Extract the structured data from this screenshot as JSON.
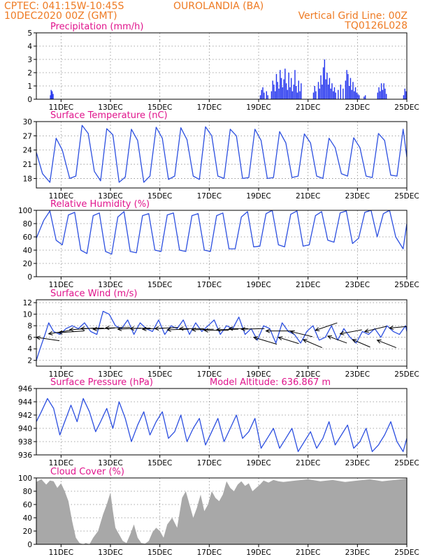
{
  "header": {
    "line1_left": "CPTEC:  041:15W-10:45S",
    "line1_right": "OUROLANDIA (BA)",
    "line2_left": "10DEC2020 00Z (GMT)",
    "line2_right": "Vertical Grid Line: 00Z",
    "line3_right": "TQ0126L028"
  },
  "colors": {
    "line": "#2c4fe0",
    "bar": "#2233ee",
    "cloud": "#a8a8a8",
    "arrow": "#000000"
  },
  "x_axis": {
    "start": 0,
    "end": 15,
    "tick_labels": [
      "11DEC",
      "13DEC",
      "15DEC",
      "17DEC",
      "19DEC",
      "21DEC",
      "23DEC",
      "25DEC"
    ],
    "tick_days": [
      1,
      3,
      5,
      7,
      9,
      11,
      13,
      15
    ]
  },
  "chart_data": [
    {
      "id": "precip",
      "type": "bar",
      "title": "Precipitation (mm/h)",
      "ylim": [
        0,
        5
      ],
      "yticks": [
        0,
        1,
        2,
        3,
        4,
        5
      ],
      "grid": true,
      "bars": [
        [
          0.55,
          0.3
        ],
        [
          0.58,
          0.7
        ],
        [
          0.62,
          0.6
        ],
        [
          0.66,
          0.4
        ],
        [
          9.05,
          0.3
        ],
        [
          9.1,
          0.7
        ],
        [
          9.15,
          0.9
        ],
        [
          9.2,
          0.5
        ],
        [
          9.3,
          0.6
        ],
        [
          9.35,
          0.3
        ],
        [
          9.5,
          0.6
        ],
        [
          9.55,
          1.4
        ],
        [
          9.6,
          1.1
        ],
        [
          9.65,
          0.6
        ],
        [
          9.7,
          1.9
        ],
        [
          9.75,
          1.3
        ],
        [
          9.8,
          0.8
        ],
        [
          9.85,
          2.2
        ],
        [
          9.9,
          1.6
        ],
        [
          9.95,
          0.9
        ],
        [
          10.0,
          1.5
        ],
        [
          10.05,
          2.3
        ],
        [
          10.1,
          1.2
        ],
        [
          10.15,
          0.7
        ],
        [
          10.2,
          2.0
        ],
        [
          10.25,
          0.9
        ],
        [
          10.3,
          1.6
        ],
        [
          10.35,
          0.6
        ],
        [
          10.4,
          1.1
        ],
        [
          10.45,
          2.2
        ],
        [
          10.5,
          1.0
        ],
        [
          10.55,
          0.5
        ],
        [
          10.6,
          1.4
        ],
        [
          10.65,
          0.6
        ],
        [
          10.7,
          1.2
        ],
        [
          11.2,
          0.5
        ],
        [
          11.25,
          1.0
        ],
        [
          11.3,
          0.6
        ],
        [
          11.4,
          1.3
        ],
        [
          11.45,
          0.8
        ],
        [
          11.5,
          1.8
        ],
        [
          11.55,
          1.1
        ],
        [
          11.6,
          2.4
        ],
        [
          11.65,
          3.0
        ],
        [
          11.7,
          1.5
        ],
        [
          11.75,
          2.0
        ],
        [
          11.8,
          1.1
        ],
        [
          11.85,
          1.6
        ],
        [
          11.9,
          0.8
        ],
        [
          11.95,
          1.2
        ],
        [
          12.0,
          0.6
        ],
        [
          12.05,
          0.9
        ],
        [
          12.1,
          0.5
        ],
        [
          12.2,
          0.7
        ],
        [
          12.3,
          1.1
        ],
        [
          12.4,
          0.8
        ],
        [
          12.5,
          1.4
        ],
        [
          12.55,
          2.2
        ],
        [
          12.6,
          1.9
        ],
        [
          12.65,
          1.0
        ],
        [
          12.7,
          1.6
        ],
        [
          12.75,
          0.7
        ],
        [
          12.8,
          1.3
        ],
        [
          12.85,
          0.6
        ],
        [
          12.9,
          0.9
        ],
        [
          12.95,
          0.5
        ],
        [
          13.0,
          0.4
        ],
        [
          13.05,
          0.3
        ],
        [
          13.25,
          0.2
        ],
        [
          13.3,
          0.3
        ],
        [
          13.8,
          0.5
        ],
        [
          13.85,
          0.9
        ],
        [
          13.9,
          0.6
        ],
        [
          13.95,
          1.2
        ],
        [
          14.0,
          0.7
        ],
        [
          14.05,
          1.2
        ],
        [
          14.1,
          0.8
        ],
        [
          14.15,
          0.4
        ],
        [
          14.85,
          0.3
        ],
        [
          14.9,
          0.8
        ],
        [
          14.95,
          0.6
        ],
        [
          15.0,
          1.0
        ]
      ]
    },
    {
      "id": "temp",
      "type": "line",
      "title": "Surface Temperature (nC)",
      "ylim": [
        16,
        30
      ],
      "yticks": [
        18,
        21,
        24,
        27,
        30
      ],
      "grid": true,
      "x": [
        0,
        0.25,
        0.55,
        0.8,
        1.05,
        1.35,
        1.6,
        1.85,
        2.1,
        2.35,
        2.6,
        2.85,
        3.1,
        3.35,
        3.6,
        3.85,
        4.1,
        4.35,
        4.6,
        4.85,
        5.1,
        5.35,
        5.6,
        5.85,
        6.1,
        6.35,
        6.6,
        6.85,
        7.1,
        7.35,
        7.6,
        7.85,
        8.1,
        8.35,
        8.6,
        8.85,
        9.1,
        9.35,
        9.6,
        9.85,
        10.1,
        10.35,
        10.6,
        10.85,
        11.1,
        11.35,
        11.6,
        11.85,
        12.1,
        12.35,
        12.6,
        12.85,
        13.1,
        13.35,
        13.6,
        13.85,
        14.1,
        14.35,
        14.6,
        14.85,
        15.0
      ],
      "y": [
        23.5,
        19,
        17.2,
        26.5,
        24,
        18,
        18.5,
        29.2,
        27.5,
        19.5,
        17.5,
        28.5,
        27.2,
        17.2,
        18.3,
        28.4,
        26,
        17.2,
        18.5,
        28.8,
        26.5,
        17.8,
        18.5,
        28.7,
        26.2,
        18.5,
        17.8,
        28.9,
        27,
        18.5,
        18,
        28.4,
        27,
        18,
        18.2,
        28.4,
        26,
        18,
        18.2,
        27.9,
        25.5,
        18.2,
        18.5,
        27.4,
        25.5,
        18.5,
        18,
        26.5,
        24.5,
        19,
        18.5,
        26.6,
        24.5,
        18.5,
        18.2,
        27.5,
        26,
        18.7,
        18.5,
        28.4,
        22.5
      ]
    },
    {
      "id": "rh",
      "type": "line",
      "title": "Relative Humidity (%)",
      "ylim": [
        0,
        100
      ],
      "yticks": [
        0,
        20,
        40,
        60,
        80,
        100
      ],
      "grid": true,
      "x": [
        0,
        0.3,
        0.55,
        0.8,
        1.05,
        1.3,
        1.55,
        1.8,
        2.05,
        2.3,
        2.55,
        2.8,
        3.05,
        3.3,
        3.55,
        3.8,
        4.05,
        4.3,
        4.55,
        4.8,
        5.05,
        5.3,
        5.55,
        5.8,
        6.05,
        6.3,
        6.55,
        6.8,
        7.05,
        7.3,
        7.55,
        7.8,
        8.05,
        8.3,
        8.55,
        8.8,
        9.05,
        9.3,
        9.55,
        9.8,
        10.05,
        10.3,
        10.55,
        10.8,
        11.05,
        11.3,
        11.55,
        11.8,
        12.05,
        12.3,
        12.55,
        12.8,
        13.05,
        13.3,
        13.55,
        13.8,
        14.05,
        14.3,
        14.55,
        14.85,
        15.0
      ],
      "y": [
        58,
        85,
        99,
        55,
        48,
        93,
        97,
        40,
        35,
        92,
        96,
        38,
        34,
        90,
        98,
        38,
        36,
        92,
        95,
        40,
        38,
        93,
        96,
        40,
        38,
        92,
        95,
        40,
        38,
        92,
        96,
        42,
        42,
        90,
        98,
        45,
        46,
        95,
        100,
        48,
        45,
        94,
        99,
        46,
        48,
        92,
        98,
        55,
        52,
        96,
        99,
        50,
        58,
        97,
        100,
        60,
        95,
        100,
        60,
        42,
        80
      ]
    },
    {
      "id": "wind",
      "type": "line",
      "title": "Surface Wind (m/s)",
      "ylim": [
        1,
        12.5
      ],
      "yticks": [
        2,
        4,
        6,
        8,
        10,
        12
      ],
      "grid": true,
      "x": [
        0,
        0.15,
        0.35,
        0.5,
        0.7,
        0.95,
        1.2,
        1.45,
        1.7,
        1.95,
        2.2,
        2.45,
        2.7,
        2.95,
        3.2,
        3.45,
        3.7,
        3.95,
        4.2,
        4.45,
        4.7,
        4.95,
        5.2,
        5.45,
        5.7,
        5.95,
        6.2,
        6.45,
        6.7,
        6.95,
        7.2,
        7.45,
        7.7,
        7.95,
        8.2,
        8.45,
        8.7,
        8.95,
        9.2,
        9.45,
        9.7,
        9.95,
        10.2,
        10.45,
        10.7,
        10.95,
        11.2,
        11.45,
        11.7,
        11.95,
        12.2,
        12.45,
        12.7,
        12.95,
        13.2,
        13.45,
        13.7,
        13.95,
        14.2,
        14.45,
        14.7,
        14.95,
        15.0
      ],
      "y": [
        2,
        4,
        6.5,
        8.5,
        7,
        6.5,
        7.5,
        8,
        7.5,
        8.5,
        7,
        6.5,
        10.5,
        10,
        8,
        7.5,
        9,
        6.5,
        8.5,
        7.5,
        7,
        9,
        6.5,
        8,
        7.5,
        9,
        6.5,
        8.5,
        7,
        8,
        9,
        6.5,
        8,
        7.5,
        9.5,
        6.5,
        7.5,
        5.5,
        8,
        7.5,
        5,
        8.5,
        7,
        6.5,
        5,
        7,
        8,
        5.5,
        6,
        8,
        5.5,
        7.5,
        6,
        5,
        7,
        6.5,
        7.5,
        6,
        8,
        7,
        6.5,
        8,
        7
      ]
    },
    {
      "id": "pressure",
      "type": "line",
      "title": "Surface Pressure (hPa)",
      "annotation": "Model Altitude: 636.867 m",
      "ylim": [
        936,
        946
      ],
      "yticks": [
        936,
        938,
        940,
        942,
        944,
        946
      ],
      "grid": true,
      "x": [
        0,
        0.2,
        0.45,
        0.7,
        0.95,
        1.15,
        1.4,
        1.65,
        1.9,
        2.15,
        2.4,
        2.6,
        2.85,
        3.1,
        3.35,
        3.6,
        3.85,
        4.1,
        4.35,
        4.6,
        4.85,
        5.1,
        5.35,
        5.6,
        5.85,
        6.1,
        6.35,
        6.6,
        6.85,
        7.1,
        7.35,
        7.6,
        7.85,
        8.1,
        8.35,
        8.6,
        8.85,
        9.1,
        9.35,
        9.6,
        9.85,
        10.1,
        10.35,
        10.6,
        10.85,
        11.1,
        11.35,
        11.6,
        11.85,
        12.1,
        12.35,
        12.6,
        12.85,
        13.1,
        13.35,
        13.6,
        13.85,
        14.1,
        14.35,
        14.6,
        14.85,
        15.0
      ],
      "y": [
        941,
        942.5,
        944.5,
        943,
        939,
        941,
        943.5,
        941,
        944.5,
        942.5,
        939.5,
        941,
        943,
        940,
        944,
        941.5,
        938,
        940.5,
        942.5,
        939,
        941,
        942.5,
        938.5,
        939.5,
        942,
        938,
        940,
        941.5,
        937.5,
        939.5,
        941.5,
        938,
        940,
        942,
        938.5,
        939.5,
        941.5,
        937,
        938.5,
        940,
        937,
        938.5,
        940,
        936.5,
        938,
        939.5,
        937,
        938.5,
        941,
        937.5,
        939,
        940.5,
        937,
        938,
        940,
        936.5,
        937.5,
        939,
        941,
        938,
        936.5,
        938.5
      ]
    },
    {
      "id": "cloud",
      "type": "area",
      "title": "Cloud Cover (%)",
      "ylim": [
        0,
        100
      ],
      "yticks": [
        0,
        20,
        40,
        60,
        80,
        100
      ],
      "grid": true,
      "x": [
        0,
        0.2,
        0.4,
        0.55,
        0.7,
        0.85,
        1.0,
        1.15,
        1.3,
        1.45,
        1.6,
        1.75,
        1.9,
        2.0,
        2.15,
        2.3,
        2.5,
        2.7,
        2.85,
        3.0,
        3.1,
        3.2,
        3.35,
        3.5,
        3.65,
        3.8,
        3.95,
        4.1,
        4.25,
        4.4,
        4.55,
        4.7,
        4.85,
        5.0,
        5.15,
        5.3,
        5.5,
        5.7,
        5.9,
        6.05,
        6.2,
        6.35,
        6.5,
        6.65,
        6.8,
        6.95,
        7.1,
        7.25,
        7.4,
        7.55,
        7.7,
        7.85,
        8.0,
        8.15,
        8.3,
        8.45,
        8.6,
        8.75,
        8.9,
        9.05,
        9.2,
        9.4,
        9.6,
        9.8,
        10.0,
        10.5,
        11.0,
        11.5,
        12.0,
        12.5,
        13.0,
        13.5,
        14.0,
        14.5,
        15.0
      ],
      "y": [
        94,
        98,
        90,
        96,
        95,
        85,
        92,
        80,
        65,
        35,
        10,
        2,
        0,
        2,
        0,
        10,
        20,
        45,
        60,
        78,
        50,
        25,
        15,
        5,
        2,
        15,
        30,
        10,
        2,
        1,
        5,
        18,
        25,
        20,
        10,
        30,
        40,
        25,
        70,
        80,
        60,
        40,
        55,
        75,
        50,
        60,
        80,
        70,
        65,
        75,
        95,
        85,
        80,
        90,
        95,
        88,
        92,
        80,
        85,
        90,
        96,
        93,
        97,
        95,
        94,
        96,
        98,
        95,
        97,
        94,
        96,
        98,
        95,
        97,
        99
      ]
    },
    {
      "id": "wind_vectors",
      "type": "vector",
      "dx_scale": 0.25,
      "dy_scale": 0.5,
      "vectors": [
        [
          0,
          6,
          1.7,
          -0.6
        ],
        [
          0.5,
          6.6,
          1.6,
          0.6
        ],
        [
          0.9,
          6.8,
          1.9,
          0.3
        ],
        [
          1.35,
          7.3,
          1.8,
          0.3
        ],
        [
          1.8,
          7.5,
          1.7,
          0.1
        ],
        [
          2.3,
          7.4,
          1.6,
          0.2
        ],
        [
          2.8,
          7.6,
          1.8,
          0.1
        ],
        [
          3.3,
          7.4,
          1.7,
          0.2
        ],
        [
          3.8,
          7.5,
          1.5,
          0.1
        ],
        [
          4.3,
          7.4,
          1.6,
          0.2
        ],
        [
          4.8,
          7.5,
          1.7,
          0.2
        ],
        [
          5.3,
          7.3,
          1.6,
          0.1
        ],
        [
          5.8,
          7.5,
          1.8,
          0.0
        ],
        [
          6.3,
          7.3,
          1.6,
          0.1
        ],
        [
          6.8,
          7.2,
          1.8,
          0.0
        ],
        [
          7.3,
          7.3,
          1.6,
          0.1
        ],
        [
          7.8,
          7.5,
          1.4,
          0.0
        ],
        [
          8.3,
          7.4,
          1.7,
          0.1
        ],
        [
          8.8,
          6,
          1.7,
          -1.2
        ],
        [
          9.3,
          7.1,
          2.0,
          0.0
        ],
        [
          9.8,
          6.0,
          1.5,
          -1.1
        ],
        [
          10.3,
          7.0,
          1.6,
          -0.9
        ],
        [
          10.8,
          5.6,
          1.4,
          -1.4
        ],
        [
          11.3,
          7.2,
          1.6,
          1.3
        ],
        [
          11.8,
          6.2,
          1.4,
          -1.2
        ],
        [
          12.3,
          6.6,
          1.6,
          0.7
        ],
        [
          12.8,
          5.6,
          1.3,
          -1.3
        ],
        [
          13.3,
          7.0,
          1.6,
          0.9
        ],
        [
          13.8,
          5.5,
          1.4,
          -1.3
        ],
        [
          14.3,
          7.6,
          1.4,
          0.3
        ]
      ]
    }
  ]
}
